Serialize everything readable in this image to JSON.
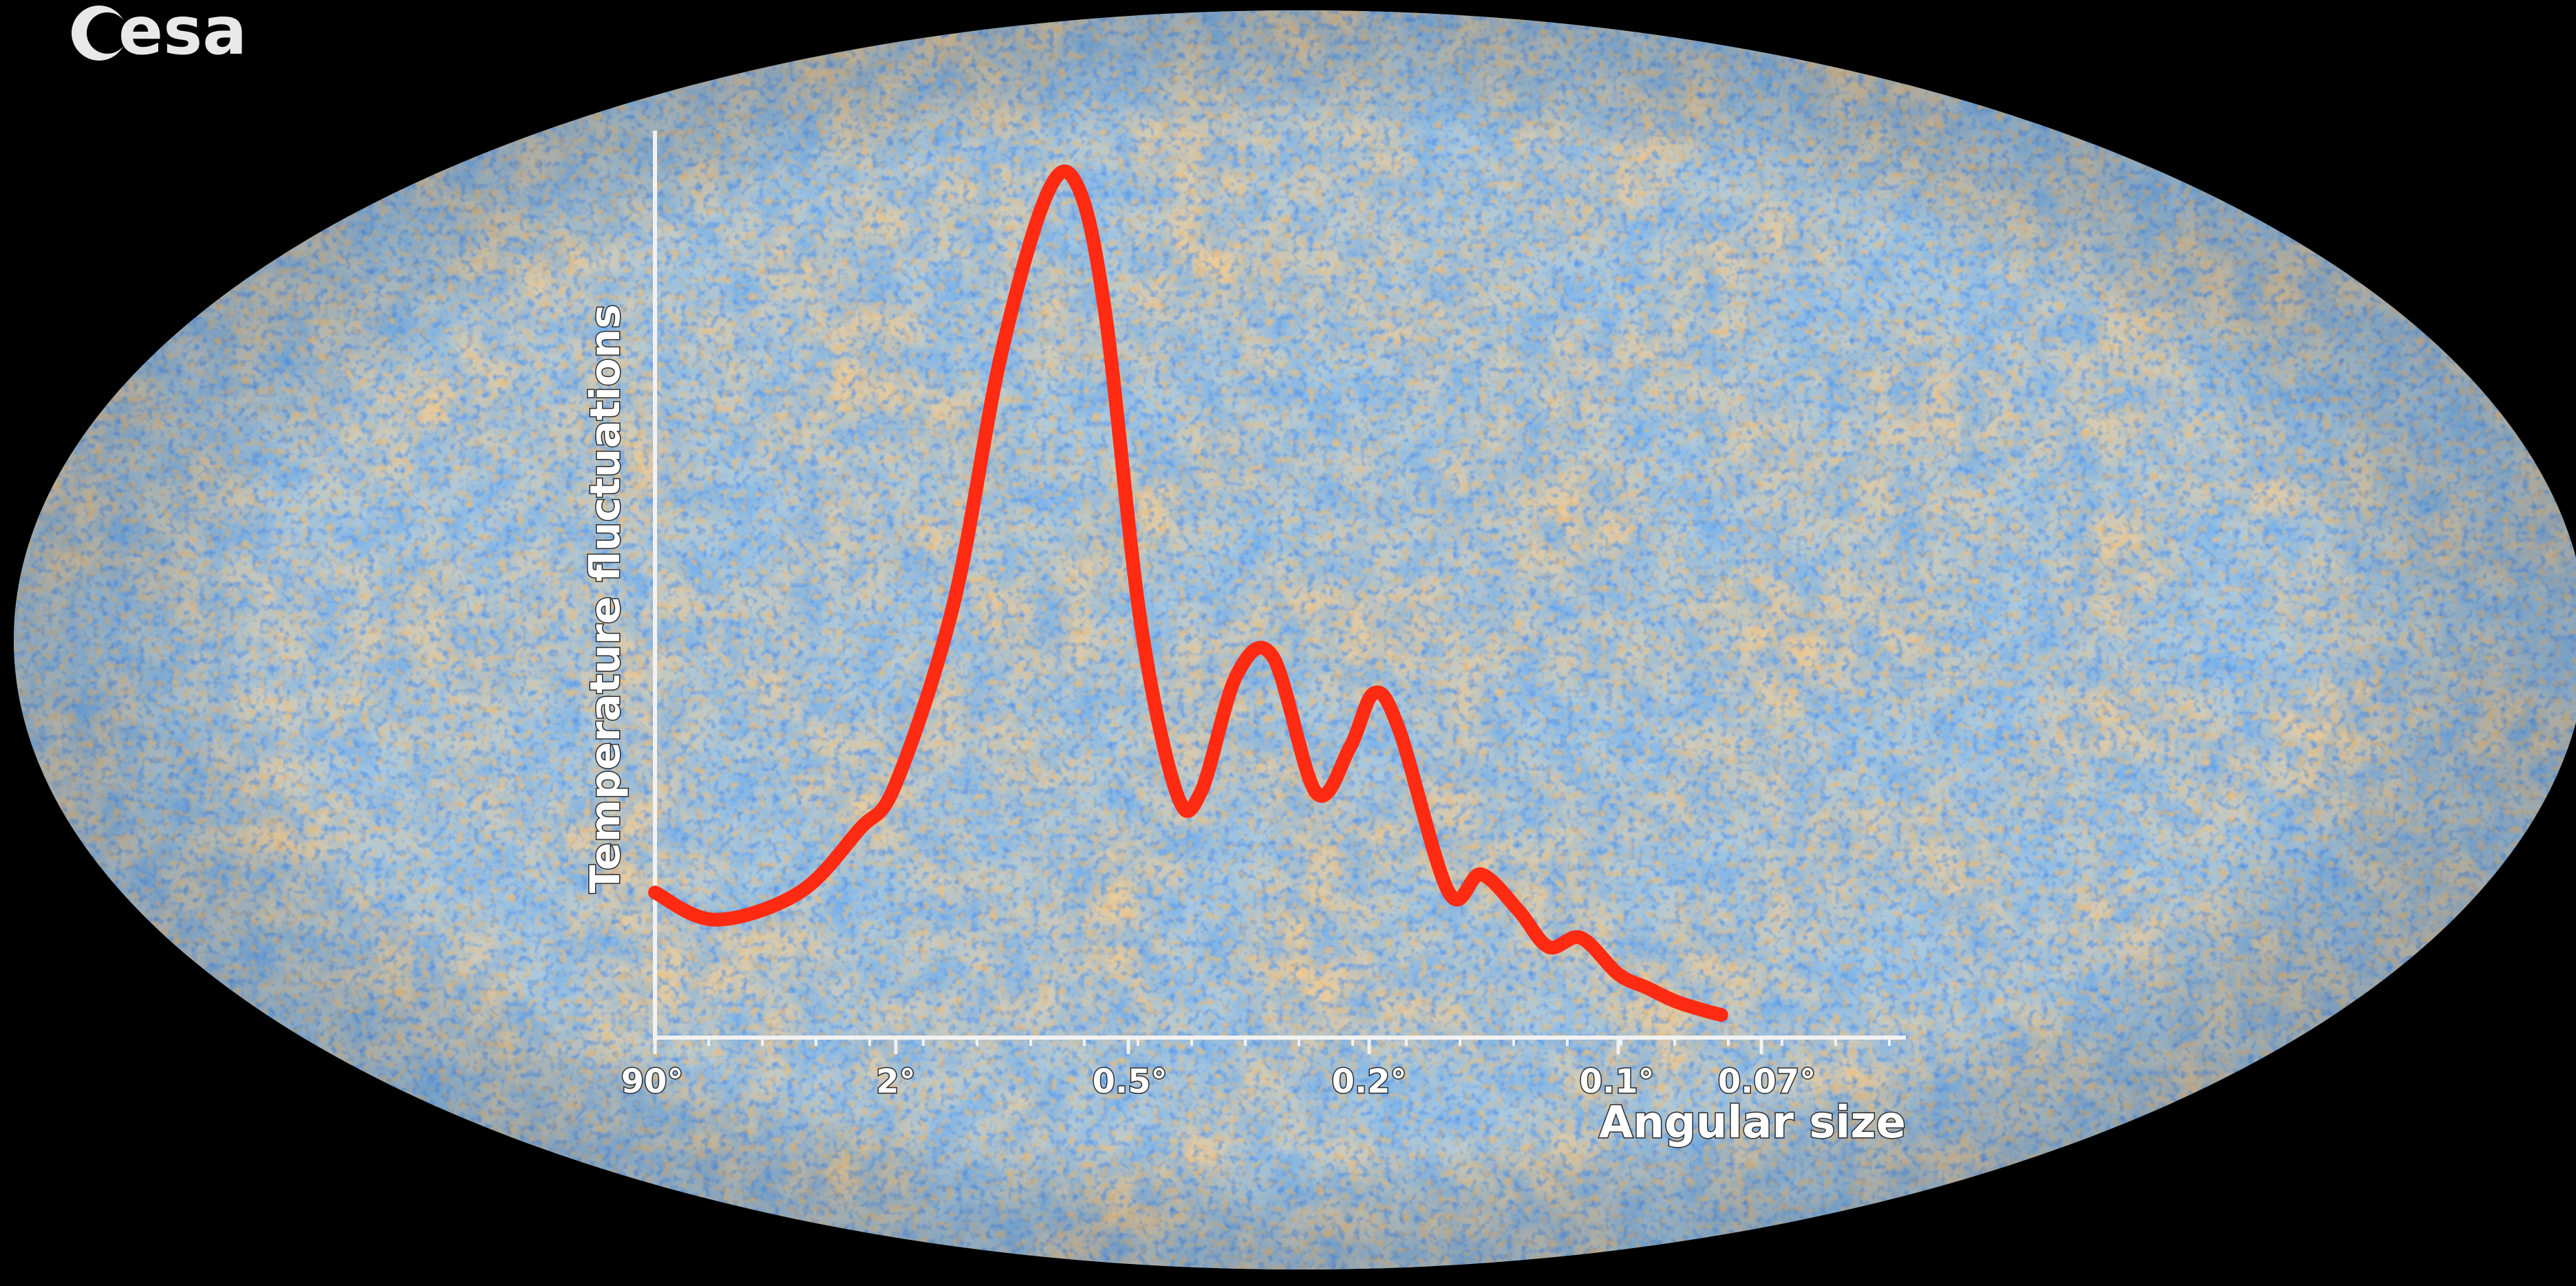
{
  "logo": {
    "text": "esa"
  },
  "colors": {
    "background": "#000000",
    "curve": "#ff2a12",
    "axis": "#f2f2f2",
    "map_base": "#a9c8de",
    "map_warm": "#e89a47",
    "map_cold": "#2f6fd6"
  },
  "chart_data": {
    "type": "line",
    "title": "",
    "xlabel": "Angular size",
    "ylabel": "Temperature fluctuations",
    "x_scale": "log (angular size decreasing to the right)",
    "x_ticks": [
      "90°",
      "2°",
      "0.5°",
      "0.2°",
      "0.1°",
      "0.07°"
    ],
    "y_ticks": [],
    "grid": false,
    "legend": "none",
    "series": [
      {
        "values_note": "Relative amplitude (0 = axis baseline, 1 = top of axis), vs tick index position",
        "points": [
          [
            0.0,
            0.16
          ],
          [
            0.25,
            0.13
          ],
          [
            0.6,
            0.16
          ],
          [
            0.85,
            0.23
          ],
          [
            1.0,
            0.28
          ],
          [
            1.25,
            0.48
          ],
          [
            1.45,
            0.75
          ],
          [
            1.65,
            0.93
          ],
          [
            1.78,
            0.94
          ],
          [
            1.9,
            0.8
          ],
          [
            2.05,
            0.46
          ],
          [
            2.2,
            0.27
          ],
          [
            2.3,
            0.27
          ],
          [
            2.45,
            0.4
          ],
          [
            2.6,
            0.42
          ],
          [
            2.78,
            0.27
          ],
          [
            2.92,
            0.32
          ],
          [
            3.02,
            0.38
          ],
          [
            3.12,
            0.34
          ],
          [
            3.32,
            0.16
          ],
          [
            3.45,
            0.18
          ],
          [
            3.6,
            0.14
          ],
          [
            3.72,
            0.1
          ],
          [
            3.85,
            0.11
          ],
          [
            4.0,
            0.07
          ],
          [
            4.2,
            0.055
          ],
          [
            4.4,
            0.04
          ],
          [
            4.6,
            0.03
          ],
          [
            4.72,
            0.025
          ]
        ]
      }
    ]
  }
}
